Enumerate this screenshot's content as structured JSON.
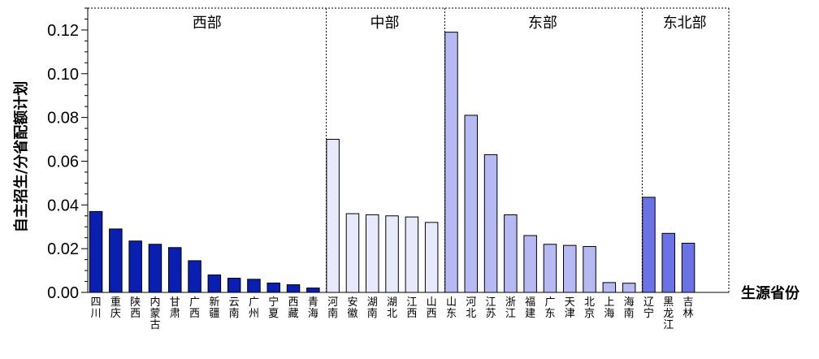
{
  "chart_data": {
    "type": "bar",
    "title": "",
    "xlabel": "生源省份",
    "ylabel": "自主招生/分省配额计划",
    "ylim": [
      0,
      0.13
    ],
    "yticks": [
      "0.00",
      "0.02",
      "0.04",
      "0.06",
      "0.08",
      "0.10",
      "0.12"
    ],
    "grid": false,
    "groups": [
      {
        "name": "西部",
        "color": "#0a1fb0",
        "categories": [
          "四川",
          "重庆",
          "陕西",
          "内蒙古",
          "甘肃",
          "广西",
          "新疆",
          "云南",
          "广州",
          "宁夏",
          "西藏",
          "青海"
        ],
        "values": [
          0.037,
          0.029,
          0.0235,
          0.022,
          0.0205,
          0.0145,
          0.008,
          0.0065,
          0.006,
          0.0043,
          0.0035,
          0.002
        ]
      },
      {
        "name": "中部",
        "color": "#e8eafc",
        "categories": [
          "河南",
          "安徽",
          "湖南",
          "湖北",
          "江西",
          "山西"
        ],
        "values": [
          0.07,
          0.036,
          0.0355,
          0.035,
          0.0345,
          0.032
        ]
      },
      {
        "name": "东部",
        "color": "#b7baf2",
        "categories": [
          "山东",
          "河北",
          "江苏",
          "浙江",
          "福建",
          "广东",
          "天津",
          "北京",
          "上海",
          "海南"
        ],
        "values": [
          0.119,
          0.081,
          0.063,
          0.0355,
          0.026,
          0.022,
          0.0215,
          0.021,
          0.0045,
          0.0042
        ]
      },
      {
        "name": "东北部",
        "color": "#6a72e4",
        "categories": [
          "辽宁",
          "黑龙江",
          "吉林"
        ],
        "values": [
          0.0435,
          0.027,
          0.0225
        ]
      }
    ]
  }
}
